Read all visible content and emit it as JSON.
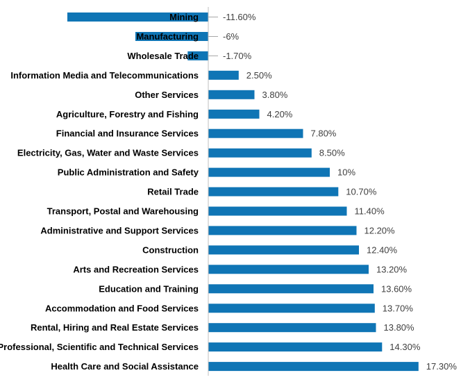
{
  "chart_data": {
    "type": "bar",
    "orientation": "horizontal",
    "title": "",
    "xlabel": "",
    "ylabel": "",
    "grid": false,
    "legend": "none",
    "bar_color": "#0f75b5",
    "xlim": [
      -11.6,
      17.3
    ],
    "categories": [
      "Mining",
      "Manufacturing",
      "Wholesale Trade",
      "Information Media and Telecommunications",
      "Other Services",
      "Agriculture, Forestry and Fishing",
      "Financial and Insurance Services",
      "Electricity, Gas, Water and Waste Services",
      "Public Administration and Safety",
      "Retail Trade",
      "Transport, Postal and Warehousing",
      "Administrative and Support Services",
      "Construction",
      "Arts and Recreation Services",
      "Education and Training",
      "Accommodation and Food Services",
      "Rental, Hiring and Real Estate Services",
      "Professional, Scientific and Technical Services",
      "Health Care and Social Assistance"
    ],
    "values": [
      -11.6,
      -6,
      -1.7,
      2.5,
      3.8,
      4.2,
      7.8,
      8.5,
      10,
      10.7,
      11.4,
      12.2,
      12.4,
      13.2,
      13.6,
      13.7,
      13.8,
      14.3,
      17.3
    ],
    "value_labels": [
      "-11.60%",
      "-6%",
      "-1.70%",
      "2.50%",
      "3.80%",
      "4.20%",
      "7.80%",
      "8.50%",
      "10%",
      "10.70%",
      "11.40%",
      "12.20%",
      "12.40%",
      "13.20%",
      "13.60%",
      "13.70%",
      "13.80%",
      "14.30%",
      "17.30%"
    ]
  }
}
